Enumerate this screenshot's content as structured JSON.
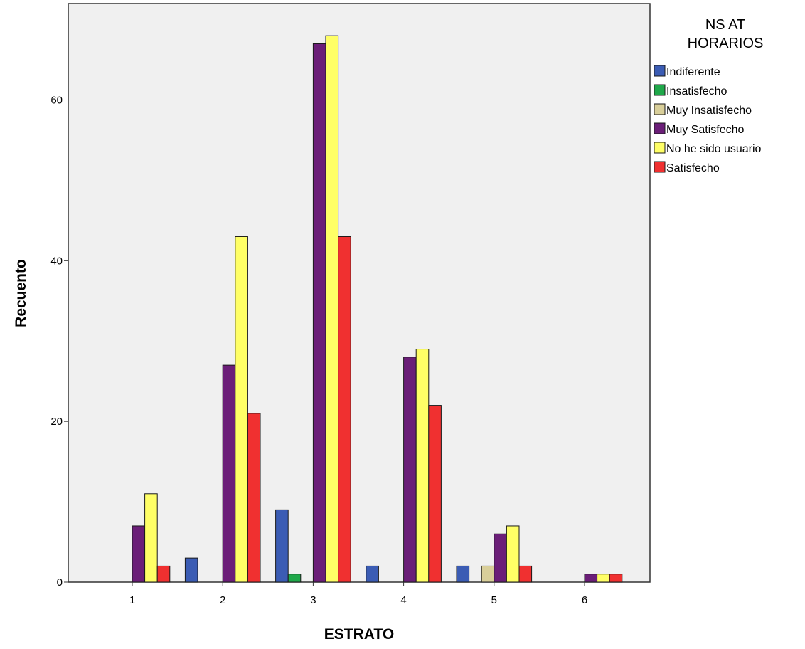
{
  "chart_data": {
    "type": "bar",
    "xlabel": "ESTRATO",
    "ylabel": "Recuento",
    "categories": [
      "1",
      "2",
      "3",
      "4",
      "5",
      "6"
    ],
    "ylim": [
      0,
      72
    ],
    "yticks": [
      0,
      20,
      40,
      60
    ],
    "grid": false,
    "legend_placement": "right",
    "legend_title_lines": [
      "NS AT",
      "HORARIOS"
    ],
    "series": [
      {
        "name": "Indiferente",
        "color": "#3b5cb4",
        "values": [
          null,
          3,
          9,
          2,
          2,
          null
        ]
      },
      {
        "name": "Insatisfecho",
        "color": "#1fa84a",
        "values": [
          null,
          null,
          1,
          null,
          null,
          null
        ]
      },
      {
        "name": "Muy Insatisfecho",
        "color": "#d9cf9a",
        "values": [
          null,
          null,
          null,
          null,
          2,
          null
        ]
      },
      {
        "name": "Muy Satisfecho",
        "color": "#6b1e78",
        "values": [
          7,
          27,
          67,
          28,
          6,
          1
        ]
      },
      {
        "name": "No he sido usuario",
        "color": "#ffff66",
        "values": [
          11,
          43,
          68,
          29,
          7,
          1
        ]
      },
      {
        "name": "Satisfecho",
        "color": "#f03030",
        "values": [
          2,
          21,
          43,
          22,
          2,
          1
        ]
      }
    ],
    "plot_background": "#f0f0f0"
  }
}
